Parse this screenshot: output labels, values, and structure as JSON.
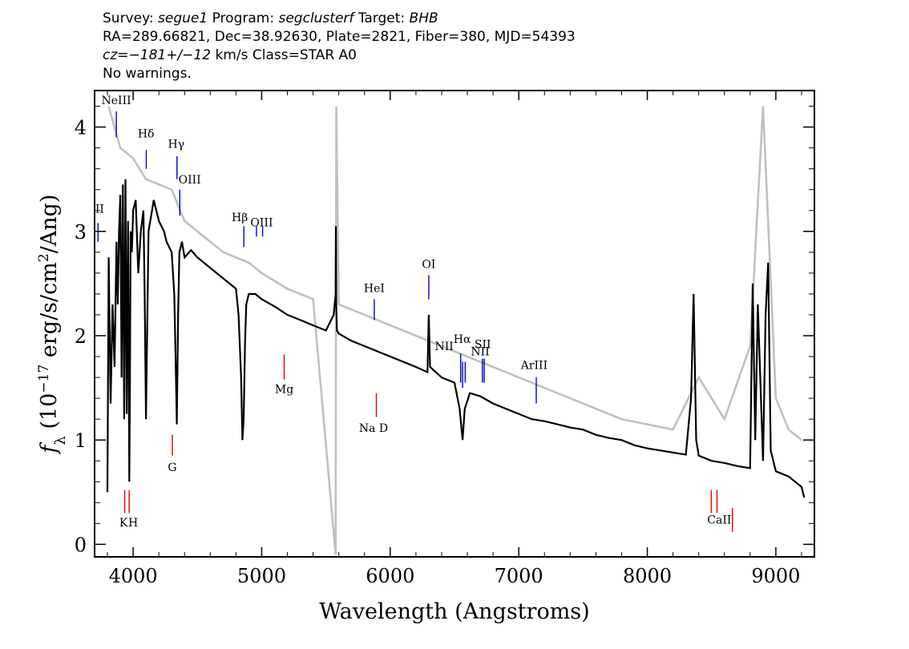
{
  "header": {
    "line1": {
      "survey_label": "Survey:",
      "survey": "segue1",
      "program_label": "Program:",
      "program": "segclusterf",
      "target_label": "Target:",
      "target": "BHB"
    },
    "line2": "RA=289.66821, Dec=38.92630, Plate=2821, Fiber=380, MJD=54393",
    "line3": {
      "cz": "cz=−181+/−12",
      "units_class": " km/s Class=STAR A0"
    },
    "line4": "No warnings."
  },
  "chart_data": {
    "type": "line",
    "title": "",
    "xlabel": "Wavelength (Angstroms)",
    "ylabel": "f_λ (10^-17 erg/s/cm^2/Ang)",
    "xlim": [
      3700,
      9300
    ],
    "ylim": [
      -0.12,
      4.35
    ],
    "x_ticks": [
      4000,
      5000,
      6000,
      7000,
      8000,
      9000
    ],
    "y_ticks": [
      0,
      1,
      2,
      3,
      4
    ],
    "grid": false,
    "series": [
      {
        "role": "flux",
        "color": "#000000",
        "x": [
          3800,
          3810,
          3825,
          3840,
          3855,
          3870,
          3880,
          3890,
          3900,
          3910,
          3920,
          3930,
          3940,
          3950,
          3960,
          3970,
          3975,
          3980,
          3990,
          4000,
          4020,
          4040,
          4060,
          4080,
          4090,
          4100,
          4110,
          4120,
          4140,
          4160,
          4180,
          4200,
          4220,
          4240,
          4260,
          4280,
          4300,
          4320,
          4330,
          4340,
          4350,
          4360,
          4380,
          4400,
          4450,
          4500,
          4550,
          4600,
          4650,
          4700,
          4750,
          4800,
          4820,
          4840,
          4850,
          4860,
          4870,
          4880,
          4900,
          4950,
          5000,
          5100,
          5200,
          5300,
          5400,
          5500,
          5560,
          5575,
          5577,
          5580,
          5585,
          5600,
          5700,
          5800,
          5900,
          6000,
          6100,
          6200,
          6290,
          6300,
          6310,
          6400,
          6500,
          6540,
          6563,
          6580,
          6620,
          6700,
          6800,
          6900,
          7000,
          7100,
          7200,
          7300,
          7400,
          7500,
          7600,
          7700,
          7800,
          7900,
          8000,
          8100,
          8200,
          8300,
          8340,
          8360,
          8380,
          8400,
          8500,
          8600,
          8700,
          8800,
          8820,
          8840,
          8860,
          8900,
          8920,
          8940,
          8960,
          9000,
          9100,
          9200,
          9220
        ],
        "y": [
          0.5,
          2.75,
          1.35,
          2.3,
          1.7,
          2.9,
          2.3,
          3.0,
          3.35,
          1.6,
          3.45,
          1.2,
          3.5,
          1.25,
          3.1,
          0.6,
          1.5,
          3.0,
          2.8,
          3.2,
          3.3,
          2.6,
          3.0,
          3.2,
          2.4,
          1.2,
          2.1,
          3.0,
          3.15,
          3.3,
          3.2,
          3.1,
          3.05,
          3.0,
          2.9,
          2.85,
          2.8,
          2.4,
          1.8,
          1.15,
          2.2,
          2.8,
          2.9,
          2.75,
          2.82,
          2.75,
          2.7,
          2.65,
          2.6,
          2.55,
          2.5,
          2.45,
          2.2,
          1.6,
          1.0,
          1.2,
          1.9,
          2.3,
          2.4,
          2.4,
          2.35,
          2.28,
          2.2,
          2.15,
          2.1,
          2.05,
          2.2,
          2.4,
          3.05,
          2.3,
          2.05,
          2.02,
          1.95,
          1.9,
          1.85,
          1.8,
          1.75,
          1.7,
          1.65,
          2.2,
          1.7,
          1.6,
          1.55,
          1.3,
          1.0,
          1.3,
          1.45,
          1.42,
          1.35,
          1.3,
          1.25,
          1.2,
          1.18,
          1.15,
          1.12,
          1.1,
          1.05,
          1.02,
          1.0,
          0.95,
          0.92,
          0.9,
          0.88,
          0.86,
          1.4,
          2.4,
          1.0,
          0.85,
          0.8,
          0.78,
          0.75,
          0.73,
          2.5,
          1.0,
          2.3,
          0.8,
          2.2,
          2.7,
          0.9,
          0.7,
          0.65,
          0.55,
          0.45
        ]
      },
      {
        "role": "flux_error",
        "color": "#c0c0c0",
        "x": [
          3810,
          3900,
          4000,
          4100,
          4200,
          4300,
          4400,
          4500,
          4600,
          4700,
          4800,
          4900,
          5000,
          5200,
          5400,
          5575,
          5580,
          5600,
          5800,
          6000,
          6200,
          6400,
          6600,
          6800,
          7000,
          7200,
          7400,
          7600,
          7800,
          8000,
          8200,
          8400,
          8600,
          8800,
          8900,
          9000,
          9100,
          9200
        ],
        "y": [
          4.2,
          3.8,
          3.7,
          3.5,
          3.45,
          3.4,
          3.1,
          3.0,
          2.9,
          2.8,
          2.75,
          2.7,
          2.6,
          2.45,
          2.35,
          -0.1,
          4.2,
          2.3,
          2.2,
          2.1,
          2.0,
          1.9,
          1.8,
          1.7,
          1.6,
          1.5,
          1.4,
          1.3,
          1.2,
          1.15,
          1.1,
          1.6,
          1.2,
          1.9,
          4.2,
          1.4,
          1.1,
          1.0
        ]
      }
    ],
    "lines": [
      {
        "label": "NeIII",
        "wave": 3869,
        "color": "blue",
        "y0": 3.9,
        "y1": 4.15,
        "lx": 3869,
        "ly": 4.22
      },
      {
        "label": "Hδ",
        "wave": 4102,
        "color": "blue",
        "y0": 3.6,
        "y1": 3.78,
        "lx": 4100,
        "ly": 3.9
      },
      {
        "label": "Hγ",
        "wave": 4341,
        "color": "blue",
        "y0": 3.5,
        "y1": 3.72,
        "lx": 4335,
        "ly": 3.8
      },
      {
        "label": "OIII",
        "wave": 4363,
        "color": "blue",
        "y0": 3.15,
        "y1": 3.4,
        "lx": 4440,
        "ly": 3.46
      },
      {
        "label": "II",
        "wave": 3727,
        "color": "blue",
        "y0": 2.9,
        "y1": 3.08,
        "lx": 3740,
        "ly": 3.18
      },
      {
        "label": "Hβ",
        "wave": 4861,
        "color": "blue",
        "y0": 2.85,
        "y1": 3.05,
        "lx": 4830,
        "ly": 3.1
      },
      {
        "label": "OIII",
        "wave": 4959,
        "color": "blue",
        "y0": 2.95,
        "y1": 3.05,
        "lx": 5000,
        "ly": 3.05
      },
      {
        "label": "OIII",
        "wave": 5007,
        "color": "blue",
        "y0": 2.95,
        "y1": 3.05,
        "lx": null,
        "ly": null
      },
      {
        "label": "HeI",
        "wave": 5876,
        "color": "blue",
        "y0": 2.15,
        "y1": 2.35,
        "lx": 5876,
        "ly": 2.42
      },
      {
        "label": "OI",
        "wave": 6300,
        "color": "blue",
        "y0": 2.35,
        "y1": 2.58,
        "lx": 6300,
        "ly": 2.65
      },
      {
        "label": "NII",
        "wave": 6548,
        "color": "blue",
        "y0": 1.55,
        "y1": 1.83,
        "lx": 6420,
        "ly": 1.86
      },
      {
        "label": "Hα",
        "wave": 6563,
        "color": "blue",
        "y0": 1.5,
        "y1": 1.75,
        "lx": 6560,
        "ly": 1.93
      },
      {
        "label": "NII",
        "wave": 6583,
        "color": "blue",
        "y0": 1.55,
        "y1": 1.75,
        "lx": 6700,
        "ly": 1.81
      },
      {
        "label": "SII",
        "wave": 6717,
        "color": "blue",
        "y0": 1.55,
        "y1": 1.78,
        "lx": 6720,
        "ly": 1.88
      },
      {
        "label": "SII",
        "wave": 6731,
        "color": "blue",
        "y0": 1.55,
        "y1": 1.78,
        "lx": null,
        "ly": null
      },
      {
        "label": "ArIII",
        "wave": 7136,
        "color": "blue",
        "y0": 1.35,
        "y1": 1.6,
        "lx": 7120,
        "ly": 1.68
      },
      {
        "label": "Mg",
        "wave": 5175,
        "color": "red",
        "y0": 1.58,
        "y1": 1.82,
        "lx": 5175,
        "ly": 1.45
      },
      {
        "label": "Na D",
        "wave": 5892,
        "color": "red",
        "y0": 1.22,
        "y1": 1.45,
        "lx": 5870,
        "ly": 1.08
      },
      {
        "label": "G",
        "wave": 4305,
        "color": "red",
        "y0": 0.85,
        "y1": 1.05,
        "lx": 4305,
        "ly": 0.7
      },
      {
        "label": "K",
        "wave": 3934,
        "color": "red",
        "y0": 0.3,
        "y1": 0.52,
        "lx": 3925,
        "ly": 0.17
      },
      {
        "label": "H",
        "wave": 3969,
        "color": "red",
        "y0": 0.3,
        "y1": 0.52,
        "lx": 4000,
        "ly": 0.17
      },
      {
        "label": "CaII",
        "wave": 8498,
        "color": "red",
        "y0": 0.3,
        "y1": 0.52,
        "lx": 8560,
        "ly": 0.2
      },
      {
        "label": "CaII",
        "wave": 8542,
        "color": "red",
        "y0": 0.3,
        "y1": 0.52,
        "lx": null,
        "ly": null
      },
      {
        "label": "CaII",
        "wave": 8662,
        "color": "red",
        "y0": 0.12,
        "y1": 0.35,
        "lx": null,
        "ly": null
      }
    ]
  }
}
